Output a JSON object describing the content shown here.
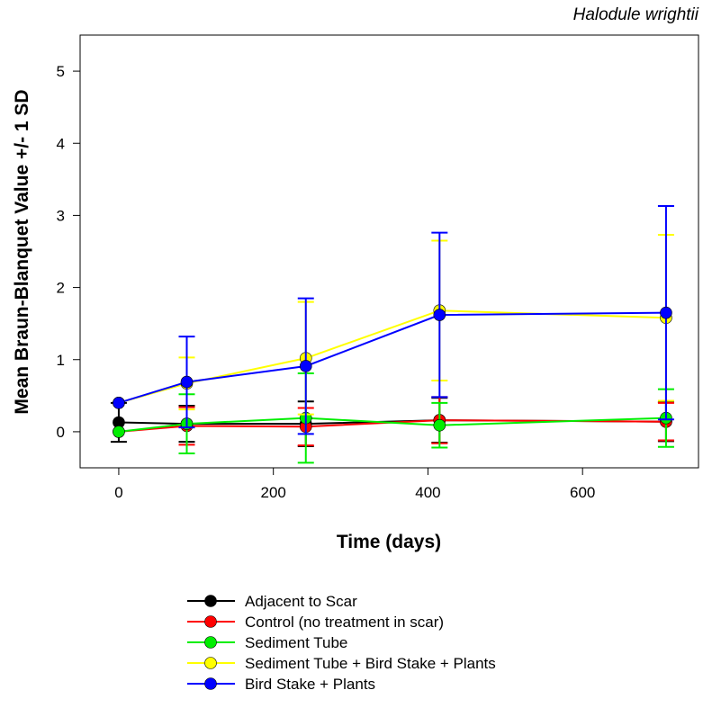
{
  "chart_data": {
    "type": "line",
    "title": "Halodule wrightii",
    "xlabel": "Time (days)",
    "ylabel": "Mean Braun-Blanquet Value +/- 1 SD",
    "xlim": [
      -50,
      750
    ],
    "ylim": [
      -0.5,
      5.5
    ],
    "xticks": [
      0,
      200,
      400,
      600
    ],
    "yticks": [
      0,
      1,
      2,
      3,
      4,
      5
    ],
    "x": [
      0,
      88,
      242,
      415,
      708
    ],
    "grid": false,
    "legend_position": "bottom-center",
    "series": [
      {
        "name": "Adjacent to Scar",
        "color": "#000000",
        "values": [
          0.13,
          0.11,
          0.11,
          0.16,
          0.14
        ],
        "sd": [
          0.27,
          0.25,
          0.31,
          0.31,
          0.27
        ]
      },
      {
        "name": "Control (no treatment in scar)",
        "color": "#ff0000",
        "values": [
          0.0,
          0.08,
          0.07,
          0.16,
          0.14
        ],
        "sd": [
          0.0,
          0.26,
          0.26,
          0.32,
          0.26
        ]
      },
      {
        "name": "Sediment Tube",
        "color": "#00ee00",
        "values": [
          0.0,
          0.11,
          0.19,
          0.09,
          0.19
        ],
        "sd": [
          0.0,
          0.41,
          0.62,
          0.31,
          0.4
        ]
      },
      {
        "name": "Sediment Tube + Bird Stake + Plants",
        "color": "#ffff00",
        "values": [
          0.4,
          0.67,
          1.02,
          1.68,
          1.58
        ],
        "sd": [
          0.0,
          0.36,
          0.78,
          0.97,
          1.15
        ]
      },
      {
        "name": "Bird Stake + Plants",
        "color": "#0000ff",
        "values": [
          0.4,
          0.69,
          0.91,
          1.62,
          1.65
        ],
        "sd": [
          0.0,
          0.63,
          0.94,
          1.14,
          1.48
        ]
      }
    ]
  }
}
